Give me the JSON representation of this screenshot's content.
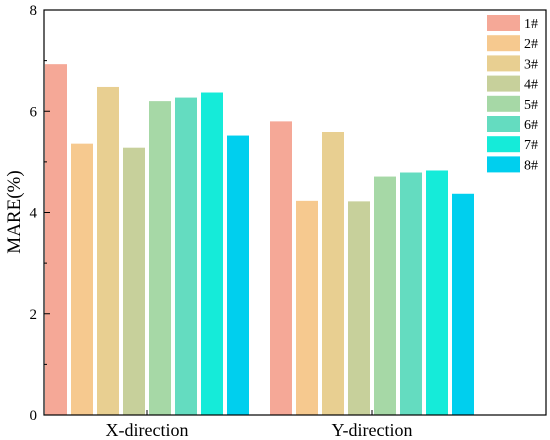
{
  "chart_data": {
    "type": "bar",
    "title": "",
    "xlabel": "",
    "ylabel": "MARE(%)",
    "ylim": [
      0,
      8
    ],
    "yticks": [
      0,
      2,
      4,
      6,
      8
    ],
    "grid": false,
    "legend_position": "top-right",
    "categories": [
      "X-direction",
      "Y-direction"
    ],
    "series": [
      {
        "name": "1#",
        "color": "#F5A897",
        "values": [
          6.93,
          5.8
        ]
      },
      {
        "name": "2#",
        "color": "#F6C98F",
        "values": [
          5.36,
          4.23
        ]
      },
      {
        "name": "3#",
        "color": "#E8CF91",
        "values": [
          6.48,
          5.59
        ]
      },
      {
        "name": "4#",
        "color": "#C7D09B",
        "values": [
          5.28,
          4.22
        ]
      },
      {
        "name": "5#",
        "color": "#A6D8A6",
        "values": [
          6.2,
          4.71
        ]
      },
      {
        "name": "6#",
        "color": "#64DCC0",
        "values": [
          6.27,
          4.79
        ]
      },
      {
        "name": "7#",
        "color": "#15EBD9",
        "values": [
          6.37,
          4.83
        ]
      },
      {
        "name": "8#",
        "color": "#00CFEE",
        "values": [
          5.52,
          4.37
        ]
      }
    ]
  }
}
